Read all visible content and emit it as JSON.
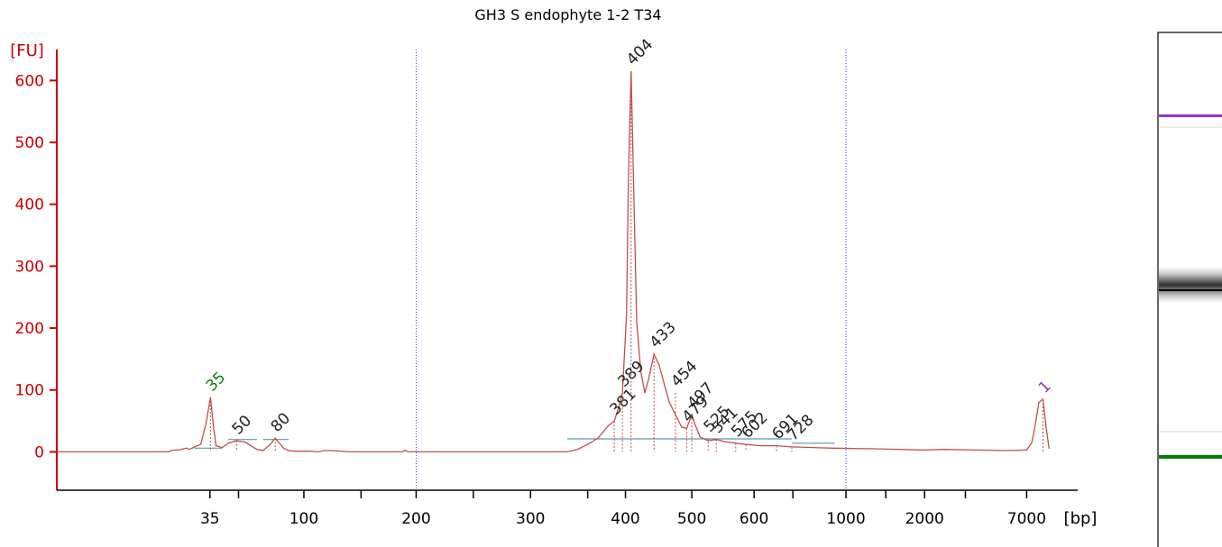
{
  "chart_data": {
    "type": "line",
    "title": "GH3 S endophyte 1-2 T34",
    "ylabel": "[FU]",
    "xunit": "[bp]",
    "ylim": [
      -62,
      650
    ],
    "yticks": [
      0,
      100,
      200,
      300,
      400,
      500,
      600
    ],
    "xticks": [
      {
        "label": "35",
        "f": 0.15
      },
      {
        "label": "",
        "f": 0.178
      },
      {
        "label": "100",
        "f": 0.242
      },
      {
        "label": "",
        "f": 0.298
      },
      {
        "label": "200",
        "f": 0.352
      },
      {
        "label": "",
        "f": 0.408
      },
      {
        "label": "300",
        "f": 0.464
      },
      {
        "label": "",
        "f": 0.52
      },
      {
        "label": "400",
        "f": 0.557
      },
      {
        "label": "500",
        "f": 0.622
      },
      {
        "label": "600",
        "f": 0.683
      },
      {
        "label": "",
        "f": 0.721
      },
      {
        "label": "1000",
        "f": 0.773
      },
      {
        "label": "",
        "f": 0.812
      },
      {
        "label": "2000",
        "f": 0.85
      },
      {
        "label": "",
        "f": 0.89
      },
      {
        "label": "7000",
        "f": 0.95
      }
    ],
    "gridlines_f": [
      0.352,
      0.773
    ],
    "baseline": 0,
    "trace": [
      [
        0,
        0
      ],
      [
        0.11,
        0
      ],
      [
        0.112,
        2
      ],
      [
        0.116,
        3
      ],
      [
        0.12,
        3
      ],
      [
        0.124,
        5
      ],
      [
        0.127,
        6
      ],
      [
        0.13,
        4
      ],
      [
        0.135,
        8
      ],
      [
        0.141,
        12
      ],
      [
        0.146,
        45
      ],
      [
        0.1505,
        88
      ],
      [
        0.1535,
        40
      ],
      [
        0.156,
        10
      ],
      [
        0.162,
        7
      ],
      [
        0.168,
        14
      ],
      [
        0.176,
        18
      ],
      [
        0.184,
        16
      ],
      [
        0.19,
        10
      ],
      [
        0.196,
        4
      ],
      [
        0.202,
        2
      ],
      [
        0.209,
        12
      ],
      [
        0.214,
        22
      ],
      [
        0.218,
        14
      ],
      [
        0.222,
        6
      ],
      [
        0.227,
        2
      ],
      [
        0.233,
        1
      ],
      [
        0.247,
        1
      ],
      [
        0.256,
        0
      ],
      [
        0.262,
        2
      ],
      [
        0.27,
        2
      ],
      [
        0.278,
        1
      ],
      [
        0.286,
        0
      ],
      [
        0.339,
        0
      ],
      [
        0.341,
        3
      ],
      [
        0.344,
        0
      ],
      [
        0.5,
        0
      ],
      [
        0.51,
        4
      ],
      [
        0.52,
        12
      ],
      [
        0.53,
        22
      ],
      [
        0.54,
        42
      ],
      [
        0.546,
        50
      ],
      [
        0.55,
        70
      ],
      [
        0.554,
        95
      ],
      [
        0.558,
        220
      ],
      [
        0.56,
        450
      ],
      [
        0.5625,
        615
      ],
      [
        0.565,
        430
      ],
      [
        0.568,
        210
      ],
      [
        0.572,
        130
      ],
      [
        0.576,
        95
      ],
      [
        0.58,
        120
      ],
      [
        0.585,
        158
      ],
      [
        0.59,
        140
      ],
      [
        0.595,
        110
      ],
      [
        0.6,
        80
      ],
      [
        0.606,
        60
      ],
      [
        0.612,
        40
      ],
      [
        0.617,
        38
      ],
      [
        0.622,
        60
      ],
      [
        0.625,
        45
      ],
      [
        0.63,
        24
      ],
      [
        0.638,
        18
      ],
      [
        0.646,
        20
      ],
      [
        0.655,
        16
      ],
      [
        0.665,
        14
      ],
      [
        0.675,
        12
      ],
      [
        0.69,
        10
      ],
      [
        0.705,
        10
      ],
      [
        0.72,
        8
      ],
      [
        0.74,
        7
      ],
      [
        0.76,
        6
      ],
      [
        0.8,
        5
      ],
      [
        0.85,
        3
      ],
      [
        0.87,
        4
      ],
      [
        0.9,
        3
      ],
      [
        0.93,
        2
      ],
      [
        0.95,
        3
      ],
      [
        0.955,
        15
      ],
      [
        0.958,
        40
      ],
      [
        0.962,
        80
      ],
      [
        0.966,
        85
      ],
      [
        0.969,
        40
      ],
      [
        0.972,
        5
      ]
    ],
    "peaks": [
      {
        "label": "35",
        "f": 0.1505,
        "y": 88,
        "color": "#008000"
      },
      {
        "label": "50",
        "f": 0.176,
        "y": 18,
        "color": "#222222"
      },
      {
        "label": "80",
        "f": 0.214,
        "y": 22,
        "color": "#222222"
      },
      {
        "label": "381",
        "f": 0.546,
        "y": 50,
        "color": "#222222"
      },
      {
        "label": "389",
        "f": 0.554,
        "y": 95,
        "color": "#222222"
      },
      {
        "label": "404",
        "f": 0.5625,
        "y": 615,
        "color": "#222222"
      },
      {
        "label": "433",
        "f": 0.585,
        "y": 158,
        "color": "#222222"
      },
      {
        "label": "454",
        "f": 0.606,
        "y": 95,
        "color": "#222222"
      },
      {
        "label": "479",
        "f": 0.617,
        "y": 38,
        "color": "#222222"
      },
      {
        "label": "497",
        "f": 0.622,
        "y": 60,
        "color": "#222222"
      },
      {
        "label": "525",
        "f": 0.638,
        "y": 22,
        "color": "#222222"
      },
      {
        "label": "541",
        "f": 0.646,
        "y": 20,
        "color": "#222222"
      },
      {
        "label": "575",
        "f": 0.665,
        "y": 14,
        "color": "#222222"
      },
      {
        "label": "602",
        "f": 0.675,
        "y": 12,
        "color": "#222222"
      },
      {
        "label": "691",
        "f": 0.705,
        "y": 10,
        "color": "#222222"
      },
      {
        "label": "728",
        "f": 0.72,
        "y": 8,
        "color": "#222222"
      },
      {
        "label": "1",
        "f": 0.966,
        "y": 85,
        "color": "#9932cc"
      }
    ],
    "segments": [
      {
        "f1": 0.135,
        "f2": 0.162,
        "y": 6
      },
      {
        "f1": 0.168,
        "f2": 0.196,
        "y": 20
      },
      {
        "f1": 0.202,
        "f2": 0.227,
        "y": 20
      },
      {
        "f1": 0.5,
        "f2": 0.72,
        "y": 21
      },
      {
        "f1": 0.72,
        "f2": 0.762,
        "y": 14
      }
    ],
    "colors": {
      "axis": "#cc0000",
      "trace": "#c0504d",
      "grid": "#4040c0",
      "baseline_segment": "#5b9aa0",
      "marker_upper": "#9932cc",
      "marker_lower": "#008000"
    }
  }
}
